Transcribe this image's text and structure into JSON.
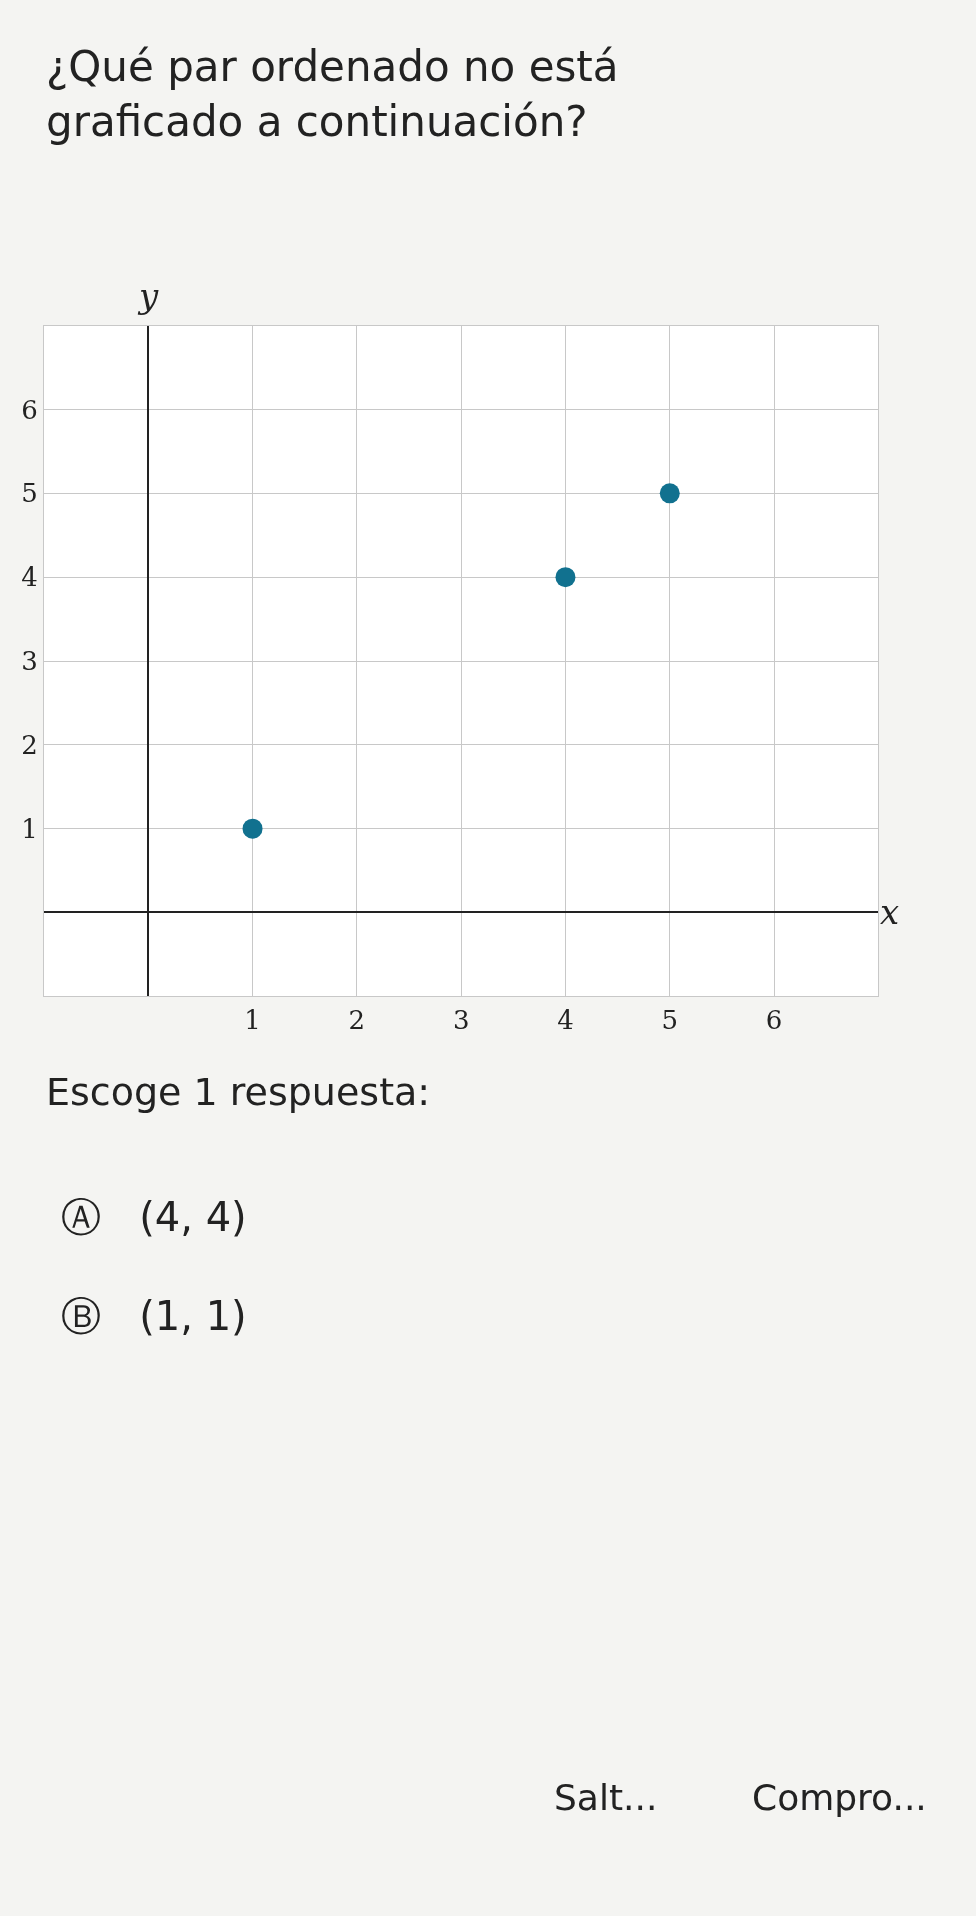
{
  "chart_data": {
    "type": "scatter",
    "title": "¿Qué par ordenado no está graficado a continuación?",
    "xlabel": "x",
    "ylabel": "y",
    "x": [
      1,
      4,
      5
    ],
    "series": [
      {
        "color": "#11718f",
        "values": [
          1,
          4,
          5
        ]
      }
    ],
    "xlim": [
      -1,
      7
    ],
    "ylim": [
      -1,
      7
    ],
    "xticks": [
      1,
      2,
      3,
      4,
      5,
      6
    ],
    "yticks": [
      1,
      2,
      3,
      4,
      5,
      6
    ],
    "grid": true,
    "marker": "circle",
    "legend": false,
    "annotations": [
      "Escoge 1 respuesta:",
      "Ⓐ   (4, 4)",
      "Ⓑ   (1, 1)",
      "Salt...",
      "Compro..."
    ]
  }
}
